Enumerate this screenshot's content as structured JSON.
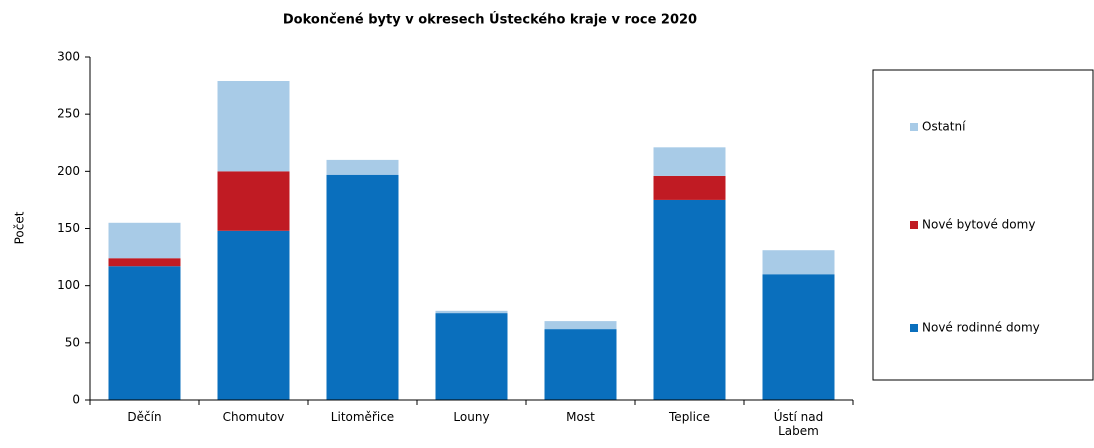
{
  "chart_data": {
    "type": "stacked_bar",
    "title": "Dokončené byty v okresech Ústeckého kraje v roce 2020",
    "y_label": "Počet",
    "categories": [
      "Děčín",
      "Chomutov",
      "Litoměřice",
      "Louny",
      "Most",
      "Teplice",
      "Ústí nad Labem"
    ],
    "series": [
      {
        "name": "Nové rodinné domy",
        "color": "#0a6fbd",
        "values": [
          117,
          148,
          197,
          76,
          62,
          175,
          110
        ]
      },
      {
        "name": "Nové bytové domy",
        "color": "#c01b23",
        "values": [
          7,
          52,
          0,
          0,
          0,
          21,
          0
        ]
      },
      {
        "name": "Ostatní",
        "color": "#a8cbe7",
        "values": [
          31,
          79,
          13,
          2,
          7,
          25,
          21
        ]
      }
    ],
    "ylim": [
      0,
      300
    ],
    "yticks": [
      0,
      50,
      100,
      150,
      200,
      250,
      300
    ],
    "legend": "right"
  }
}
